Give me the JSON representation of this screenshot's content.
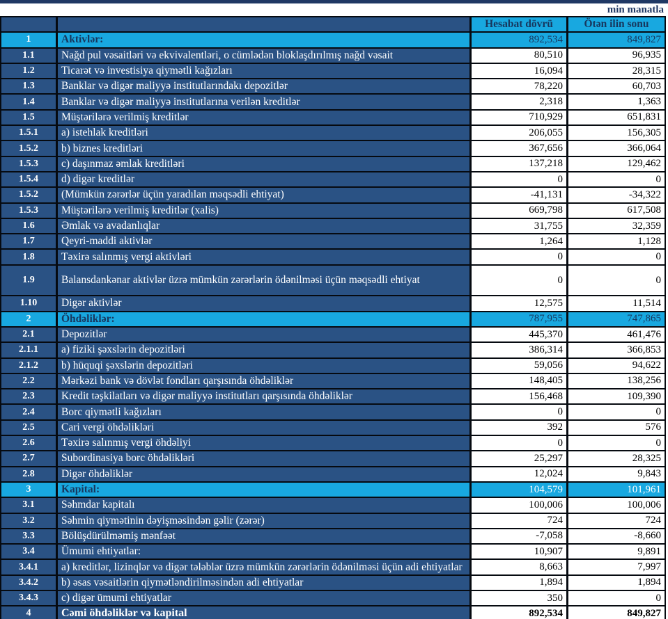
{
  "unit_label": "min manatla",
  "colors": {
    "navy_cell": "#2A5284",
    "cyan_accent": "#18A8E0",
    "dark_navy_text": "#17375E",
    "top_strip": "#1F3864",
    "grid_line": "#060a10"
  },
  "table": {
    "columns": {
      "current": "Hesabat dövrü",
      "previous": "Ötən ilin sonu"
    },
    "rows": [
      {
        "no": "1",
        "label": "Aktivlər:",
        "current": "892,534",
        "previous": "849,827",
        "type": "section"
      },
      {
        "no": "1.1",
        "label": "Nağd pul vəsaitləri və  ekvivalentləri, o cümlədən bloklaşdırılmış nağd vəsait",
        "current": "80,510",
        "previous": "96,935",
        "type": "data"
      },
      {
        "no": "1.2",
        "label": "Ticarət və investisiya qiymətli kağızları",
        "current": "16,094",
        "previous": "28,315",
        "type": "data"
      },
      {
        "no": "1.3",
        "label": "Banklar və digər maliyyə institutlarındakı depozitlər",
        "current": "78,220",
        "previous": "60,703",
        "type": "data"
      },
      {
        "no": "1.4",
        "label": "Banklar və digər maliyyə institutlarına verilən kreditlər",
        "current": "2,318",
        "previous": "1,363",
        "type": "data"
      },
      {
        "no": "1.5",
        "label": "Müştərilərə verilmiş kreditlər",
        "current": "710,929",
        "previous": "651,831",
        "type": "data"
      },
      {
        "no": "1.5.1",
        "label": "a) istehlak kreditləri",
        "current": "206,055",
        "previous": "156,305",
        "type": "data"
      },
      {
        "no": "1.5.2",
        "label": "b) biznes kreditləri",
        "current": "367,656",
        "previous": "366,064",
        "type": "data"
      },
      {
        "no": "1.5.3",
        "label": "c) daşınmaz əmlak kreditləri",
        "current": "137,218",
        "previous": "129,462",
        "type": "data"
      },
      {
        "no": "1.5.4",
        "label": "d) digər kreditlər",
        "current": "0",
        "previous": "0",
        "type": "data"
      },
      {
        "no": "1.5.2",
        "label": "(Mümkün zərərlər üçün yaradılan məqsədli ehtiyat)",
        "current": "-41,131",
        "previous": "-34,322",
        "type": "data"
      },
      {
        "no": "1.5.3",
        "label": "Müştərilərə verilmiş kreditlər (xalis)",
        "current": "669,798",
        "previous": "617,508",
        "type": "data"
      },
      {
        "no": "1.6",
        "label": "Əmlak və avadanlıqlar",
        "current": "31,755",
        "previous": "32,359",
        "type": "data"
      },
      {
        "no": "1.7",
        "label": "Qeyri-maddi aktivlər",
        "current": "1,264",
        "previous": "1,128",
        "type": "data"
      },
      {
        "no": "1.8",
        "label": "Təxirə salınmış vergi aktivləri",
        "current": "0",
        "previous": "0",
        "type": "data"
      },
      {
        "no": "1.9",
        "label": "Balansdankənar aktivlər üzrə mümkün zərərlərin ödənilməsi üçün məqsədli ehtiyat",
        "current": "0",
        "previous": "0",
        "type": "tall"
      },
      {
        "no": "1.10",
        "label": "Digər aktivlər",
        "current": "12,575",
        "previous": "11,514",
        "type": "data"
      },
      {
        "no": "2",
        "label": "Öhdəliklər:",
        "current": "787,955",
        "previous": "747,865",
        "type": "section"
      },
      {
        "no": "2.1",
        "label": "Depozitlər",
        "current": "445,370",
        "previous": "461,476",
        "type": "data"
      },
      {
        "no": "2.1.1",
        "label": "a) fiziki şəxslərin depozitləri",
        "current": "386,314",
        "previous": "366,853",
        "type": "data"
      },
      {
        "no": "2.1.2",
        "label": "b) hüquqi şəxslərin depozitləri",
        "current": "59,056",
        "previous": "94,622",
        "type": "data"
      },
      {
        "no": "2.2",
        "label": "Mərkəzi bank və dövlət fondları qarşısında öhdəliklər",
        "current": "148,405",
        "previous": "138,256",
        "type": "data"
      },
      {
        "no": "2.3",
        "label": "Kredit təşkilatları və digər maliyyə institutları qarşısında öhdəliklər",
        "current": "156,468",
        "previous": "109,390",
        "type": "data"
      },
      {
        "no": "2.4",
        "label": "Borc qiymətli kağızları",
        "current": "0",
        "previous": "0",
        "type": "data"
      },
      {
        "no": "2.5",
        "label": "Cari vergi öhdəlikləri",
        "current": "392",
        "previous": "576",
        "type": "data"
      },
      {
        "no": "2.6",
        "label": "Təxirə salınmış vergi öhdəliyi",
        "current": "0",
        "previous": "0",
        "type": "data"
      },
      {
        "no": "2.7",
        "label": "Subordinasiya borc öhdəlikləri",
        "current": "25,297",
        "previous": "28,325",
        "type": "data"
      },
      {
        "no": "2.8",
        "label": "Digər öhdəliklər",
        "current": "12,024",
        "previous": "9,843",
        "type": "data"
      },
      {
        "no": "3",
        "label": "Kapital:",
        "current": "104,579",
        "previous": "101,961",
        "type": "section-light"
      },
      {
        "no": "3.1",
        "label": "Səhmdar kapitalı",
        "current": "100,006",
        "previous": "100,006",
        "type": "data"
      },
      {
        "no": "3.2",
        "label": "Səhmin qiymətinin dəyişməsindən gəlir (zərər)",
        "current": "724",
        "previous": "724",
        "type": "data"
      },
      {
        "no": "3.3",
        "label": "Bölüşdürülməmiş mənfəət",
        "current": "-7,058",
        "previous": "-8,660",
        "type": "data"
      },
      {
        "no": "3.4",
        "label": "Ümumi ehtiyatlar:",
        "current": "10,907",
        "previous": "9,891",
        "type": "data"
      },
      {
        "no": "3.4.1",
        "label": "a) kreditlər, lizinqlər və digər tələblər üzrə mümkün zərərlərin ödənilməsi üçün adi ehtiyatlar",
        "current": "8,663",
        "previous": "7,997",
        "type": "data"
      },
      {
        "no": "3.4.2",
        "label": "b) əsas vəsaitlərin qiymətləndirilməsindən adi ehtiyatlar",
        "current": "1,894",
        "previous": "1,894",
        "type": "data"
      },
      {
        "no": "3.4.3",
        "label": "c) digər ümumi ehtiyatlar",
        "current": "350",
        "previous": "0",
        "type": "data"
      },
      {
        "no": "4",
        "label": "Cəmi öhdəliklər və kapital",
        "current": "892,534",
        "previous": "849,827",
        "type": "total"
      }
    ]
  }
}
